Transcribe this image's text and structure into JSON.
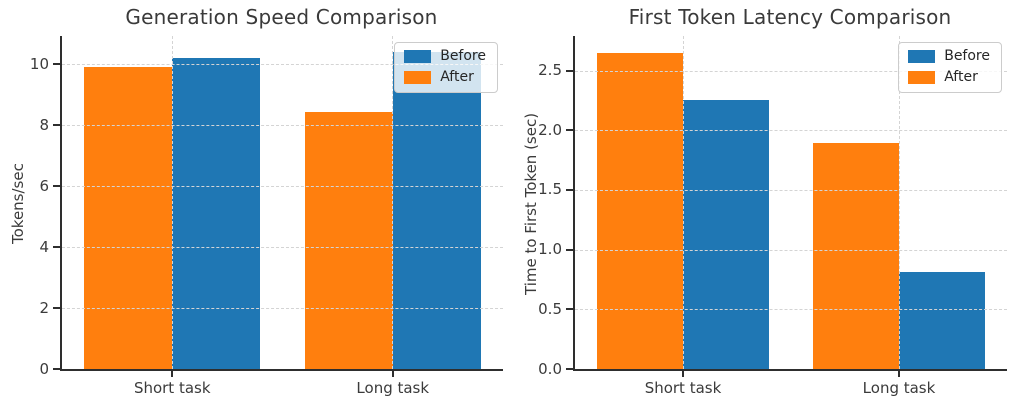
{
  "figure": {
    "background": "#ffffff",
    "series_colors": {
      "before": "#1f77b4",
      "after": "#ff7f0e"
    }
  },
  "chart_data": [
    {
      "type": "bar",
      "title": "Generation Speed Comparison",
      "xlabel": "",
      "ylabel": "Tokens/sec",
      "categories": [
        "Short task",
        "Long task"
      ],
      "series": [
        {
          "name": "After",
          "color": "#ff7f0e",
          "values": [
            9.9,
            8.45
          ]
        },
        {
          "name": "Before",
          "color": "#1f77b4",
          "values": [
            10.2,
            10.4
          ]
        }
      ],
      "bar_order_note": "After drawn left of Before in each group",
      "legend": {
        "position": "upper right",
        "entries": [
          "Before",
          "After"
        ]
      },
      "ylim": [
        0,
        10.93
      ],
      "yticks": [
        "0",
        "2",
        "4",
        "6",
        "8",
        "10"
      ],
      "grid": true
    },
    {
      "type": "bar",
      "title": "First Token Latency Comparison",
      "xlabel": "",
      "ylabel": "Time to First Token (sec)",
      "categories": [
        "Short task",
        "Long task"
      ],
      "series": [
        {
          "name": "After",
          "color": "#ff7f0e",
          "values": [
            2.65,
            1.89
          ]
        },
        {
          "name": "Before",
          "color": "#1f77b4",
          "values": [
            2.25,
            0.81
          ]
        }
      ],
      "bar_order_note": "After drawn left of Before in each group",
      "legend": {
        "position": "upper right",
        "entries": [
          "Before",
          "After"
        ]
      },
      "ylim": [
        0,
        2.79
      ],
      "yticks": [
        "0.0",
        "0.5",
        "1.0",
        "1.5",
        "2.0",
        "2.5"
      ],
      "grid": true
    }
  ]
}
